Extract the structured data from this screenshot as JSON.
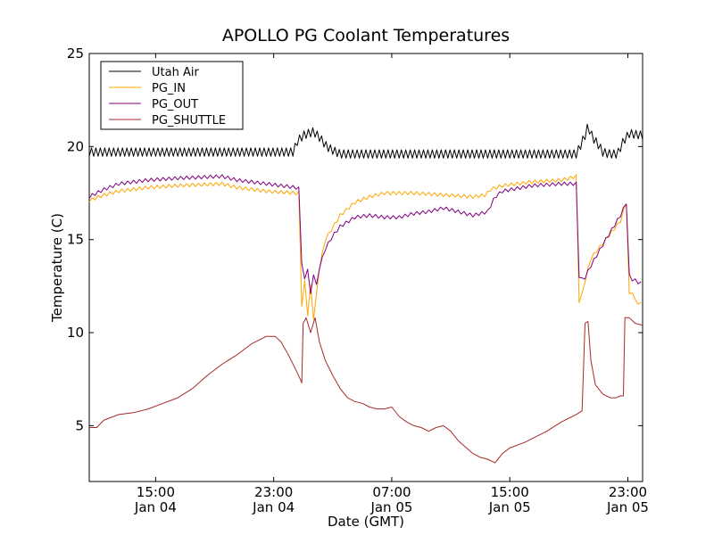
{
  "chart_data": {
    "type": "line",
    "title": "APOLLO PG Coolant Temperatures",
    "xlabel": "Date (GMT)",
    "ylabel": "Temperature (C)",
    "x_unit": "hours since Jan 04 10:00 GMT",
    "xlim": [
      0,
      37.5
    ],
    "ylim": [
      2,
      25
    ],
    "yticks": [
      5,
      10,
      15,
      20,
      25
    ],
    "xticks": [
      {
        "x": 4.5,
        "line1": "15:00",
        "line2": "Jan 04"
      },
      {
        "x": 12.5,
        "line1": "23:00",
        "line2": "Jan 04"
      },
      {
        "x": 20.5,
        "line1": "07:00",
        "line2": "Jan 05"
      },
      {
        "x": 28.5,
        "line1": "15:00",
        "line2": "Jan 05"
      },
      {
        "x": 36.5,
        "line1": "23:00",
        "line2": "Jan 05"
      }
    ],
    "legend": {
      "position": "top-left"
    },
    "series": [
      {
        "name": "Utah Air",
        "color": "#000000",
        "oscillation": 0.45,
        "oscillation_period": 0.3,
        "points": [
          [
            0,
            19.7
          ],
          [
            13.9,
            19.7
          ],
          [
            14.0,
            20.2
          ],
          [
            14.5,
            20.6
          ],
          [
            15.2,
            20.8
          ],
          [
            15.6,
            20.5
          ],
          [
            16.1,
            20.0
          ],
          [
            16.5,
            19.8
          ],
          [
            17.0,
            19.6
          ],
          [
            17.4,
            19.6
          ],
          [
            29.0,
            19.6
          ],
          [
            33.0,
            19.6
          ],
          [
            33.2,
            19.9
          ],
          [
            33.6,
            20.6
          ],
          [
            33.8,
            21.1
          ],
          [
            34.1,
            20.5
          ],
          [
            34.5,
            20.1
          ],
          [
            34.8,
            19.7
          ],
          [
            35.3,
            19.6
          ],
          [
            35.8,
            19.6
          ],
          [
            36.2,
            20.3
          ],
          [
            36.6,
            20.7
          ],
          [
            37.5,
            20.6
          ]
        ]
      },
      {
        "name": "PG_IN",
        "color": "#FFA500",
        "oscillation": 0.18,
        "oscillation_period": 0.4,
        "points": [
          [
            0,
            17.1
          ],
          [
            1,
            17.4
          ],
          [
            2,
            17.6
          ],
          [
            4,
            17.8
          ],
          [
            6,
            17.9
          ],
          [
            9,
            18.0
          ],
          [
            10,
            17.8
          ],
          [
            12,
            17.6
          ],
          [
            14,
            17.5
          ],
          [
            14.3,
            17.5
          ],
          [
            14.4,
            11.5
          ],
          [
            14.6,
            12.7
          ],
          [
            14.8,
            11.0
          ],
          [
            15.0,
            12.5
          ],
          [
            15.2,
            10.8
          ],
          [
            15.4,
            12.0
          ],
          [
            15.6,
            13.5
          ],
          [
            16.0,
            15.0
          ],
          [
            17,
            16.3
          ],
          [
            18,
            17.0
          ],
          [
            19,
            17.3
          ],
          [
            20,
            17.5
          ],
          [
            22,
            17.5
          ],
          [
            24,
            17.4
          ],
          [
            26,
            17.3
          ],
          [
            26.9,
            17.4
          ],
          [
            27.2,
            17.7
          ],
          [
            28,
            17.9
          ],
          [
            30,
            18.1
          ],
          [
            32,
            18.2
          ],
          [
            33,
            18.4
          ],
          [
            33.1,
            11.8
          ],
          [
            33.3,
            11.6
          ],
          [
            33.5,
            12.5
          ],
          [
            34,
            14.0
          ],
          [
            35,
            15.0
          ],
          [
            36,
            16.0
          ],
          [
            36.2,
            16.5
          ],
          [
            36.4,
            17.0
          ],
          [
            36.5,
            11.5
          ],
          [
            36.7,
            12.5
          ],
          [
            37,
            11.7
          ],
          [
            37.5,
            11.5
          ]
        ]
      },
      {
        "name": "PG_OUT",
        "color": "#800080",
        "oscillation": 0.18,
        "oscillation_period": 0.4,
        "points": [
          [
            0,
            17.3
          ],
          [
            1,
            17.7
          ],
          [
            2,
            18.0
          ],
          [
            4,
            18.2
          ],
          [
            6,
            18.3
          ],
          [
            9,
            18.4
          ],
          [
            10,
            18.2
          ],
          [
            12,
            18.0
          ],
          [
            14,
            17.8
          ],
          [
            14.3,
            17.7
          ],
          [
            14.4,
            13.8
          ],
          [
            14.6,
            12.8
          ],
          [
            14.8,
            13.5
          ],
          [
            15.0,
            12.0
          ],
          [
            15.2,
            13.2
          ],
          [
            15.4,
            12.5
          ],
          [
            15.6,
            13.5
          ],
          [
            16.0,
            14.5
          ],
          [
            16.5,
            15.2
          ],
          [
            17,
            15.7
          ],
          [
            18,
            16.2
          ],
          [
            19,
            16.3
          ],
          [
            20,
            16.2
          ],
          [
            21,
            16.2
          ],
          [
            22,
            16.4
          ],
          [
            23,
            16.5
          ],
          [
            24,
            16.7
          ],
          [
            25,
            16.5
          ],
          [
            26,
            16.3
          ],
          [
            27,
            16.5
          ],
          [
            27.5,
            17.3
          ],
          [
            28,
            17.6
          ],
          [
            30,
            17.9
          ],
          [
            32,
            18.0
          ],
          [
            33,
            18.0
          ],
          [
            33.1,
            13.2
          ],
          [
            33.3,
            12.9
          ],
          [
            33.5,
            12.8
          ],
          [
            34,
            13.6
          ],
          [
            35,
            15.0
          ],
          [
            36,
            16.3
          ],
          [
            36.4,
            17.0
          ],
          [
            36.5,
            13.2
          ],
          [
            36.7,
            12.9
          ],
          [
            37,
            12.8
          ],
          [
            37.5,
            12.6
          ]
        ]
      },
      {
        "name": "PG_SHUTTLE",
        "color": "#A52A2A",
        "oscillation": 0,
        "oscillation_period": 0.4,
        "points": [
          [
            0,
            4.9
          ],
          [
            0.5,
            4.9
          ],
          [
            1,
            5.3
          ],
          [
            2,
            5.6
          ],
          [
            3,
            5.7
          ],
          [
            4,
            5.9
          ],
          [
            5,
            6.2
          ],
          [
            6,
            6.5
          ],
          [
            7,
            7.0
          ],
          [
            8,
            7.7
          ],
          [
            9,
            8.3
          ],
          [
            10,
            8.8
          ],
          [
            11,
            9.4
          ],
          [
            12,
            9.8
          ],
          [
            12.6,
            9.8
          ],
          [
            13,
            9.5
          ],
          [
            13.5,
            8.8
          ],
          [
            14,
            8.0
          ],
          [
            14.3,
            7.5
          ],
          [
            14.4,
            7.3
          ],
          [
            14.5,
            10.5
          ],
          [
            14.7,
            10.8
          ],
          [
            15.0,
            10.0
          ],
          [
            15.3,
            10.8
          ],
          [
            15.6,
            9.5
          ],
          [
            16,
            8.5
          ],
          [
            16.5,
            7.7
          ],
          [
            17,
            7.0
          ],
          [
            17.5,
            6.5
          ],
          [
            18,
            6.3
          ],
          [
            18.5,
            6.2
          ],
          [
            19,
            6.0
          ],
          [
            19.5,
            5.9
          ],
          [
            20,
            5.9
          ],
          [
            20.5,
            6.0
          ],
          [
            21,
            5.5
          ],
          [
            21.5,
            5.2
          ],
          [
            22,
            5.0
          ],
          [
            22.5,
            4.9
          ],
          [
            23,
            4.7
          ],
          [
            23.5,
            4.9
          ],
          [
            24,
            5.0
          ],
          [
            24.5,
            4.7
          ],
          [
            25,
            4.2
          ],
          [
            26,
            3.5
          ],
          [
            26.5,
            3.3
          ],
          [
            27,
            3.2
          ],
          [
            27.5,
            3.0
          ],
          [
            28,
            3.5
          ],
          [
            28.5,
            3.8
          ],
          [
            29.5,
            4.1
          ],
          [
            30.5,
            4.5
          ],
          [
            31,
            4.7
          ],
          [
            32,
            5.2
          ],
          [
            33,
            5.6
          ],
          [
            33.4,
            5.8
          ],
          [
            33.6,
            10.5
          ],
          [
            33.8,
            10.6
          ],
          [
            34,
            8.5
          ],
          [
            34.3,
            7.2
          ],
          [
            34.8,
            6.7
          ],
          [
            35.3,
            6.5
          ],
          [
            35.7,
            6.5
          ],
          [
            36.0,
            6.6
          ],
          [
            36.2,
            6.6
          ],
          [
            36.3,
            10.8
          ],
          [
            36.6,
            10.8
          ],
          [
            37,
            10.5
          ],
          [
            37.5,
            10.4
          ]
        ]
      }
    ]
  }
}
